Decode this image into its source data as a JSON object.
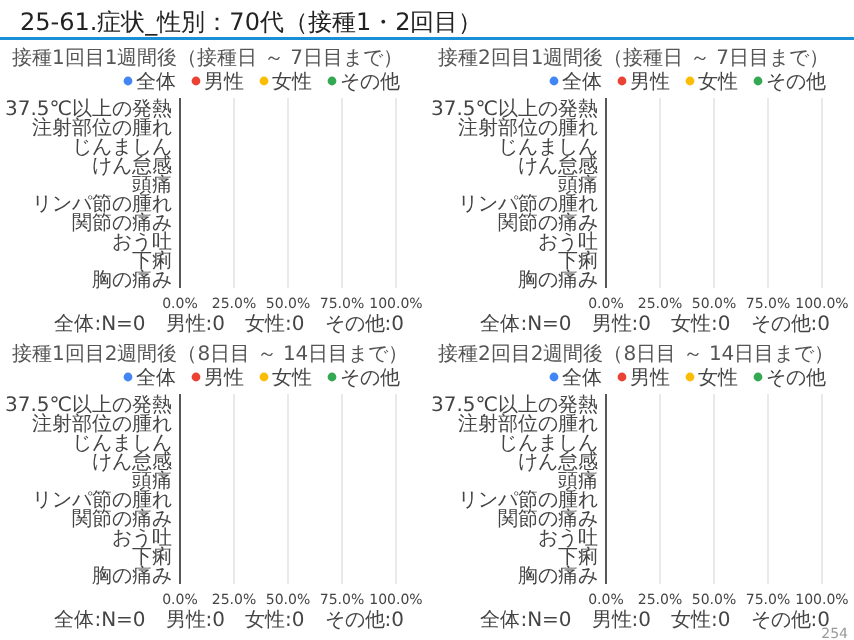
{
  "chart_data": [
    {
      "type": "bar",
      "orientation": "horizontal",
      "title": "接種1回目1週間後（接種日 ～ 7日目まで）",
      "categories": [
        "37.5℃以上の発熱",
        "注射部位の腫れ",
        "じんましん",
        "けん怠感",
        "頭痛",
        "リンパ節の腫れ",
        "関節の痛み",
        "おう吐",
        "下痢",
        "胸の痛み"
      ],
      "series": [
        {
          "name": "全体",
          "color": "#4285f4",
          "values": [
            0,
            0,
            0,
            0,
            0,
            0,
            0,
            0,
            0,
            0
          ]
        },
        {
          "name": "男性",
          "color": "#ea4335",
          "values": [
            0,
            0,
            0,
            0,
            0,
            0,
            0,
            0,
            0,
            0
          ]
        },
        {
          "name": "女性",
          "color": "#fbbc04",
          "values": [
            0,
            0,
            0,
            0,
            0,
            0,
            0,
            0,
            0,
            0
          ]
        },
        {
          "name": "その他",
          "color": "#34a853",
          "values": [
            0,
            0,
            0,
            0,
            0,
            0,
            0,
            0,
            0,
            0
          ]
        }
      ],
      "xlim": [
        0,
        100
      ],
      "xticks": [
        {
          "value": 0,
          "label": "0.0%"
        },
        {
          "value": 25,
          "label": "25.0%"
        },
        {
          "value": 50,
          "label": "50.0%"
        },
        {
          "value": 75,
          "label": "75.0%"
        },
        {
          "value": 100,
          "label": "100.0%"
        }
      ],
      "grid": "x",
      "legend": "top",
      "annotations": [
        "25-61.症状_性別：70代（接種1・2回目）",
        "全体:N=0　男性:0　女性:0　その他:0"
      ]
    },
    {
      "type": "bar",
      "orientation": "horizontal",
      "title": "接種2回目1週間後（接種日 ～ 7日目まで）",
      "categories": [
        "37.5℃以上の発熱",
        "注射部位の腫れ",
        "じんましん",
        "けん怠感",
        "頭痛",
        "リンパ節の腫れ",
        "関節の痛み",
        "おう吐",
        "下痢",
        "胸の痛み"
      ],
      "series": [
        {
          "name": "全体",
          "color": "#4285f4",
          "values": [
            0,
            0,
            0,
            0,
            0,
            0,
            0,
            0,
            0,
            0
          ]
        },
        {
          "name": "男性",
          "color": "#ea4335",
          "values": [
            0,
            0,
            0,
            0,
            0,
            0,
            0,
            0,
            0,
            0
          ]
        },
        {
          "name": "女性",
          "color": "#fbbc04",
          "values": [
            0,
            0,
            0,
            0,
            0,
            0,
            0,
            0,
            0,
            0
          ]
        },
        {
          "name": "その他",
          "color": "#34a853",
          "values": [
            0,
            0,
            0,
            0,
            0,
            0,
            0,
            0,
            0,
            0
          ]
        }
      ],
      "xlim": [
        0,
        100
      ],
      "xticks": [
        {
          "value": 0,
          "label": "0.0%"
        },
        {
          "value": 25,
          "label": "25.0%"
        },
        {
          "value": 50,
          "label": "50.0%"
        },
        {
          "value": 75,
          "label": "75.0%"
        },
        {
          "value": 100,
          "label": "100.0%"
        }
      ],
      "grid": "x",
      "legend": "top",
      "annotations": [
        "全体:N=0　男性:0　女性:0　その他:0"
      ]
    },
    {
      "type": "bar",
      "orientation": "horizontal",
      "title": "接種1回目2週間後（8日目 ～ 14日目まで）",
      "categories": [
        "37.5℃以上の発熱",
        "注射部位の腫れ",
        "じんましん",
        "けん怠感",
        "頭痛",
        "リンパ節の腫れ",
        "関節の痛み",
        "おう吐",
        "下痢",
        "胸の痛み"
      ],
      "series": [
        {
          "name": "全体",
          "color": "#4285f4",
          "values": [
            0,
            0,
            0,
            0,
            0,
            0,
            0,
            0,
            0,
            0
          ]
        },
        {
          "name": "男性",
          "color": "#ea4335",
          "values": [
            0,
            0,
            0,
            0,
            0,
            0,
            0,
            0,
            0,
            0
          ]
        },
        {
          "name": "女性",
          "color": "#fbbc04",
          "values": [
            0,
            0,
            0,
            0,
            0,
            0,
            0,
            0,
            0,
            0
          ]
        },
        {
          "name": "その他",
          "color": "#34a853",
          "values": [
            0,
            0,
            0,
            0,
            0,
            0,
            0,
            0,
            0,
            0
          ]
        }
      ],
      "xlim": [
        0,
        100
      ],
      "xticks": [
        {
          "value": 0,
          "label": "0.0%"
        },
        {
          "value": 25,
          "label": "25.0%"
        },
        {
          "value": 50,
          "label": "50.0%"
        },
        {
          "value": 75,
          "label": "75.0%"
        },
        {
          "value": 100,
          "label": "100.0%"
        }
      ],
      "grid": "x",
      "legend": "top",
      "annotations": [
        "全体:N=0　男性:0　女性:0　その他:0"
      ]
    },
    {
      "type": "bar",
      "orientation": "horizontal",
      "title": "接種2回目2週間後（8日目 ～ 14日目まで）",
      "categories": [
        "37.5℃以上の発熱",
        "注射部位の腫れ",
        "じんましん",
        "けん怠感",
        "頭痛",
        "リンパ節の腫れ",
        "関節の痛み",
        "おう吐",
        "下痢",
        "胸の痛み"
      ],
      "series": [
        {
          "name": "全体",
          "color": "#4285f4",
          "values": [
            0,
            0,
            0,
            0,
            0,
            0,
            0,
            0,
            0,
            0
          ]
        },
        {
          "name": "男性",
          "color": "#ea4335",
          "values": [
            0,
            0,
            0,
            0,
            0,
            0,
            0,
            0,
            0,
            0
          ]
        },
        {
          "name": "女性",
          "color": "#fbbc04",
          "values": [
            0,
            0,
            0,
            0,
            0,
            0,
            0,
            0,
            0,
            0
          ]
        },
        {
          "name": "その他",
          "color": "#34a853",
          "values": [
            0,
            0,
            0,
            0,
            0,
            0,
            0,
            0,
            0,
            0
          ]
        }
      ],
      "xlim": [
        0,
        100
      ],
      "xticks": [
        {
          "value": 0,
          "label": "0.0%"
        },
        {
          "value": 25,
          "label": "25.0%"
        },
        {
          "value": 50,
          "label": "50.0%"
        },
        {
          "value": 75,
          "label": "75.0%"
        },
        {
          "value": 100,
          "label": "100.0%"
        }
      ],
      "grid": "x",
      "legend": "top",
      "annotations": [
        "全体:N=0　男性:0　女性:0　その他:0",
        "254"
      ]
    }
  ]
}
